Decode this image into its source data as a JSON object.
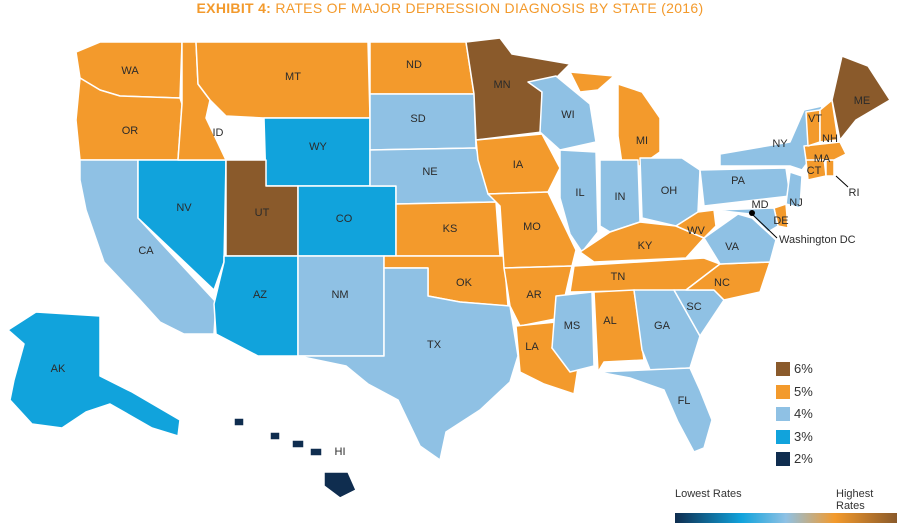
{
  "title": {
    "bold": "EXHIBIT 4:",
    "text": " RATES OF MAJOR DEPRESSION DIAGNOSIS BY STATE (2016)"
  },
  "colors": {
    "6%": "#8a5a2b",
    "5%": "#f39a2c",
    "4%": "#8fc1e4",
    "3%": "#11a3dc",
    "2%": "#0f2d4f"
  },
  "legend": [
    {
      "label": "6%",
      "rate": "6%"
    },
    {
      "label": "5%",
      "rate": "5%"
    },
    {
      "label": "4%",
      "rate": "4%"
    },
    {
      "label": "3%",
      "rate": "3%"
    },
    {
      "label": "2%",
      "rate": "2%"
    }
  ],
  "scale": {
    "low": "Lowest Rates",
    "high": "Highest Rates"
  },
  "callout": "Washington DC",
  "states": [
    {
      "abbr": "WA",
      "rate": "5%"
    },
    {
      "abbr": "OR",
      "rate": "5%"
    },
    {
      "abbr": "CA",
      "rate": "4%"
    },
    {
      "abbr": "NV",
      "rate": "3%"
    },
    {
      "abbr": "ID",
      "rate": "5%"
    },
    {
      "abbr": "MT",
      "rate": "5%"
    },
    {
      "abbr": "WY",
      "rate": "3%"
    },
    {
      "abbr": "UT",
      "rate": "6%"
    },
    {
      "abbr": "AZ",
      "rate": "3%"
    },
    {
      "abbr": "CO",
      "rate": "3%"
    },
    {
      "abbr": "NM",
      "rate": "4%"
    },
    {
      "abbr": "ND",
      "rate": "5%"
    },
    {
      "abbr": "SD",
      "rate": "4%"
    },
    {
      "abbr": "NE",
      "rate": "4%"
    },
    {
      "abbr": "KS",
      "rate": "5%"
    },
    {
      "abbr": "OK",
      "rate": "5%"
    },
    {
      "abbr": "TX",
      "rate": "4%"
    },
    {
      "abbr": "MN",
      "rate": "6%"
    },
    {
      "abbr": "IA",
      "rate": "5%"
    },
    {
      "abbr": "MO",
      "rate": "5%"
    },
    {
      "abbr": "AR",
      "rate": "5%"
    },
    {
      "abbr": "LA",
      "rate": "5%"
    },
    {
      "abbr": "WI",
      "rate": "4%"
    },
    {
      "abbr": "IL",
      "rate": "4%"
    },
    {
      "abbr": "MI",
      "rate": "5%"
    },
    {
      "abbr": "IN",
      "rate": "4%"
    },
    {
      "abbr": "OH",
      "rate": "4%"
    },
    {
      "abbr": "KY",
      "rate": "5%"
    },
    {
      "abbr": "TN",
      "rate": "5%"
    },
    {
      "abbr": "MS",
      "rate": "4%"
    },
    {
      "abbr": "AL",
      "rate": "5%"
    },
    {
      "abbr": "GA",
      "rate": "4%"
    },
    {
      "abbr": "FL",
      "rate": "4%"
    },
    {
      "abbr": "SC",
      "rate": "4%"
    },
    {
      "abbr": "NC",
      "rate": "5%"
    },
    {
      "abbr": "VA",
      "rate": "4%"
    },
    {
      "abbr": "WV",
      "rate": "5%"
    },
    {
      "abbr": "PA",
      "rate": "4%"
    },
    {
      "abbr": "NY",
      "rate": "4%"
    },
    {
      "abbr": "NJ",
      "rate": "4%"
    },
    {
      "abbr": "DE",
      "rate": "5%"
    },
    {
      "abbr": "MD",
      "rate": "4%"
    },
    {
      "abbr": "CT",
      "rate": "5%"
    },
    {
      "abbr": "RI",
      "rate": "5%"
    },
    {
      "abbr": "MA",
      "rate": "5%"
    },
    {
      "abbr": "VT",
      "rate": "5%"
    },
    {
      "abbr": "NH",
      "rate": "5%"
    },
    {
      "abbr": "ME",
      "rate": "6%"
    },
    {
      "abbr": "AK",
      "rate": "3%"
    },
    {
      "abbr": "HI",
      "rate": "2%"
    }
  ]
}
